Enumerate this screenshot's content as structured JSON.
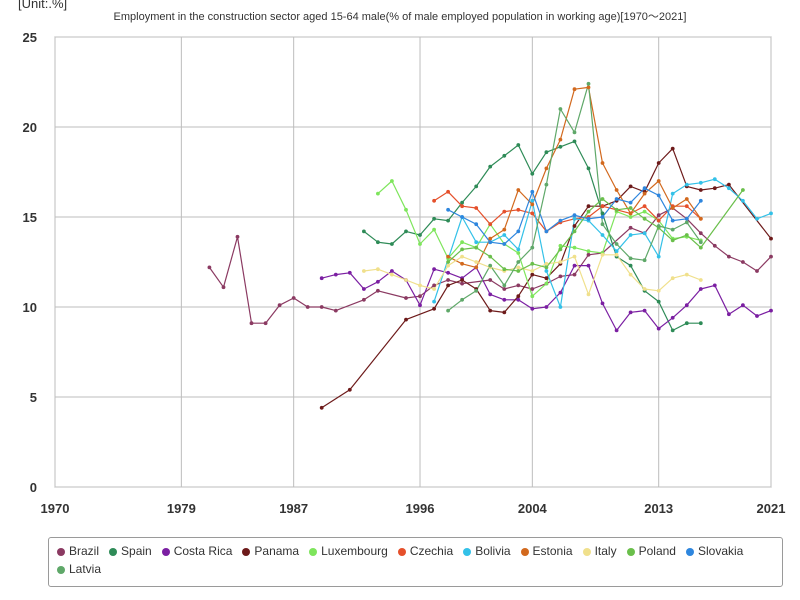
{
  "chart_data": {
    "type": "line",
    "unit_label": "[Unit:.%]",
    "title": "Employment in the construction sector aged 15-64 male(% of male employed population in working age)[1970〜2021]",
    "xlabel": "",
    "ylabel": "",
    "xlim": [
      1970,
      2021
    ],
    "ylim": [
      0,
      25
    ],
    "x_ticks": [
      "1970",
      "1979",
      "1987",
      "1996",
      "2004",
      "2013",
      "2021"
    ],
    "y_ticks": [
      "0",
      "5",
      "10",
      "15",
      "20",
      "25"
    ],
    "grid": true,
    "legend_position": "bottom",
    "series": [
      {
        "name": "Brazil",
        "color": "#8b3a62",
        "points": [
          [
            1981,
            12.2
          ],
          [
            1982,
            11.1
          ],
          [
            1983,
            13.9
          ],
          [
            1984,
            9.1
          ],
          [
            1985,
            9.1
          ],
          [
            1986,
            10.1
          ],
          [
            1987,
            10.5
          ],
          [
            1988,
            10.0
          ],
          [
            1989,
            10.0
          ],
          [
            1990,
            9.8
          ],
          [
            1992,
            10.4
          ],
          [
            1993,
            10.9
          ],
          [
            1995,
            10.5
          ],
          [
            1996,
            10.6
          ],
          [
            1997,
            11.2
          ],
          [
            1998,
            11.5
          ],
          [
            1999,
            11.3
          ],
          [
            2001,
            11.5
          ],
          [
            2002,
            11.0
          ],
          [
            2003,
            11.2
          ],
          [
            2004,
            11.0
          ],
          [
            2005,
            11.3
          ],
          [
            2006,
            11.7
          ],
          [
            2007,
            11.8
          ],
          [
            2008,
            12.9
          ],
          [
            2009,
            13.0
          ],
          [
            2011,
            14.4
          ],
          [
            2012,
            14.1
          ],
          [
            2013,
            15.1
          ],
          [
            2014,
            15.5
          ],
          [
            2015,
            14.9
          ],
          [
            2016,
            14.1
          ],
          [
            2017,
            13.4
          ],
          [
            2018,
            12.8
          ],
          [
            2019,
            12.5
          ],
          [
            2020,
            12.0
          ],
          [
            2021,
            12.8
          ]
        ]
      },
      {
        "name": "Spain",
        "color": "#2e8b57",
        "points": [
          [
            1992,
            14.2
          ],
          [
            1993,
            13.6
          ],
          [
            1994,
            13.5
          ],
          [
            1995,
            14.2
          ],
          [
            1996,
            14.0
          ],
          [
            1997,
            14.9
          ],
          [
            1998,
            14.8
          ],
          [
            1999,
            15.8
          ],
          [
            2000,
            16.7
          ],
          [
            2001,
            17.8
          ],
          [
            2002,
            18.4
          ],
          [
            2003,
            19.0
          ],
          [
            2004,
            17.4
          ],
          [
            2005,
            18.6
          ],
          [
            2006,
            18.9
          ],
          [
            2007,
            19.2
          ],
          [
            2008,
            17.7
          ],
          [
            2009,
            15.2
          ],
          [
            2010,
            12.8
          ],
          [
            2011,
            12.3
          ],
          [
            2012,
            10.9
          ],
          [
            2013,
            10.3
          ],
          [
            2014,
            8.7
          ],
          [
            2015,
            9.1
          ],
          [
            2016,
            9.1
          ]
        ]
      },
      {
        "name": "Costa Rica",
        "color": "#7b1fa2",
        "points": [
          [
            1989,
            11.6
          ],
          [
            1990,
            11.8
          ],
          [
            1991,
            11.9
          ],
          [
            1992,
            11.0
          ],
          [
            1993,
            11.4
          ],
          [
            1994,
            12.0
          ],
          [
            1995,
            11.5
          ],
          [
            1996,
            10.1
          ],
          [
            1997,
            12.1
          ],
          [
            1998,
            11.9
          ],
          [
            1999,
            11.6
          ],
          [
            2000,
            12.2
          ],
          [
            2001,
            10.7
          ],
          [
            2002,
            10.4
          ],
          [
            2003,
            10.4
          ],
          [
            2004,
            9.9
          ],
          [
            2005,
            10.0
          ],
          [
            2006,
            10.8
          ],
          [
            2007,
            12.3
          ],
          [
            2008,
            12.3
          ],
          [
            2009,
            10.2
          ],
          [
            2010,
            8.7
          ],
          [
            2011,
            9.7
          ],
          [
            2012,
            9.8
          ],
          [
            2013,
            8.8
          ],
          [
            2014,
            9.4
          ],
          [
            2015,
            10.1
          ],
          [
            2016,
            11.0
          ],
          [
            2017,
            11.2
          ],
          [
            2018,
            9.6
          ],
          [
            2019,
            10.1
          ],
          [
            2020,
            9.5
          ],
          [
            2021,
            9.8
          ]
        ]
      },
      {
        "name": "Panama",
        "color": "#6d1a1a",
        "points": [
          [
            1989,
            4.4
          ],
          [
            1991,
            5.4
          ],
          [
            1995,
            9.3
          ],
          [
            1997,
            9.9
          ],
          [
            1998,
            11.2
          ],
          [
            1999,
            11.5
          ],
          [
            2000,
            11.0
          ],
          [
            2001,
            9.8
          ],
          [
            2002,
            9.7
          ],
          [
            2003,
            10.6
          ],
          [
            2004,
            11.8
          ],
          [
            2005,
            11.6
          ],
          [
            2006,
            12.4
          ],
          [
            2007,
            14.5
          ],
          [
            2008,
            15.6
          ],
          [
            2009,
            15.6
          ],
          [
            2010,
            15.9
          ],
          [
            2011,
            16.7
          ],
          [
            2012,
            16.4
          ],
          [
            2013,
            18.0
          ],
          [
            2014,
            18.8
          ],
          [
            2015,
            16.7
          ],
          [
            2016,
            16.5
          ],
          [
            2017,
            16.6
          ],
          [
            2018,
            16.8
          ],
          [
            2021,
            13.8
          ]
        ]
      },
      {
        "name": "Luxembourg",
        "color": "#7ee55c",
        "points": [
          [
            1993,
            16.3
          ],
          [
            1994,
            17.0
          ],
          [
            1995,
            15.4
          ],
          [
            1996,
            13.5
          ],
          [
            1997,
            14.3
          ],
          [
            1998,
            12.7
          ],
          [
            1999,
            13.6
          ],
          [
            2000,
            13.3
          ],
          [
            2001,
            14.6
          ],
          [
            2002,
            13.5
          ],
          [
            2003,
            13.0
          ],
          [
            2004,
            10.6
          ],
          [
            2005,
            11.3
          ],
          [
            2006,
            13.4
          ],
          [
            2007,
            13.3
          ],
          [
            2008,
            13.1
          ],
          [
            2009,
            13.0
          ],
          [
            2010,
            15.3
          ],
          [
            2011,
            15.0
          ],
          [
            2012,
            15.3
          ],
          [
            2013,
            14.8
          ],
          [
            2014,
            13.8
          ],
          [
            2015,
            13.9
          ],
          [
            2016,
            13.7
          ]
        ]
      },
      {
        "name": "Czechia",
        "color": "#e5502b",
        "points": [
          [
            1997,
            15.9
          ],
          [
            1998,
            16.4
          ],
          [
            1999,
            15.6
          ],
          [
            2000,
            15.5
          ],
          [
            2001,
            14.6
          ],
          [
            2002,
            15.3
          ],
          [
            2003,
            15.4
          ],
          [
            2004,
            15.2
          ],
          [
            2005,
            14.2
          ],
          [
            2006,
            14.7
          ],
          [
            2007,
            14.9
          ],
          [
            2008,
            15.0
          ],
          [
            2009,
            15.6
          ],
          [
            2010,
            15.4
          ],
          [
            2011,
            15.2
          ],
          [
            2012,
            15.6
          ],
          [
            2013,
            14.8
          ],
          [
            2014,
            15.6
          ],
          [
            2015,
            15.6
          ],
          [
            2016,
            14.9
          ]
        ]
      },
      {
        "name": "Bolivia",
        "color": "#33c1e8",
        "points": [
          [
            1997,
            10.3
          ],
          [
            1999,
            15.0
          ],
          [
            2000,
            13.6
          ],
          [
            2001,
            13.6
          ],
          [
            2002,
            14.0
          ],
          [
            2003,
            13.2
          ],
          [
            2004,
            15.9
          ],
          [
            2005,
            12.0
          ],
          [
            2006,
            10.0
          ],
          [
            2007,
            14.9
          ],
          [
            2008,
            14.8
          ],
          [
            2009,
            14.0
          ],
          [
            2010,
            13.1
          ],
          [
            2011,
            14.0
          ],
          [
            2012,
            14.1
          ],
          [
            2013,
            12.8
          ],
          [
            2014,
            16.3
          ],
          [
            2015,
            16.8
          ],
          [
            2016,
            16.9
          ],
          [
            2017,
            17.1
          ],
          [
            2018,
            16.6
          ],
          [
            2019,
            15.9
          ],
          [
            2020,
            14.9
          ],
          [
            2021,
            15.2
          ]
        ]
      },
      {
        "name": "Estonia",
        "color": "#d2691e",
        "points": [
          [
            1998,
            12.8
          ],
          [
            1999,
            12.4
          ],
          [
            2000,
            12.2
          ],
          [
            2001,
            13.8
          ],
          [
            2002,
            14.3
          ],
          [
            2003,
            16.5
          ],
          [
            2004,
            15.7
          ],
          [
            2005,
            17.7
          ],
          [
            2006,
            19.3
          ],
          [
            2007,
            22.1
          ],
          [
            2008,
            22.2
          ],
          [
            2009,
            18.0
          ],
          [
            2010,
            16.5
          ],
          [
            2011,
            15.2
          ],
          [
            2012,
            16.3
          ],
          [
            2013,
            17.0
          ],
          [
            2014,
            15.5
          ],
          [
            2015,
            16.0
          ],
          [
            2016,
            14.9
          ]
        ]
      },
      {
        "name": "Italy",
        "color": "#f0e08c",
        "points": [
          [
            1992,
            12.0
          ],
          [
            1993,
            12.1
          ],
          [
            1994,
            11.8
          ],
          [
            1995,
            11.5
          ],
          [
            1996,
            11.2
          ],
          [
            1997,
            11.0
          ],
          [
            1998,
            12.3
          ],
          [
            1999,
            12.8
          ],
          [
            2000,
            12.5
          ],
          [
            2001,
            12.2
          ],
          [
            2002,
            12.0
          ],
          [
            2003,
            12.2
          ],
          [
            2004,
            12.0
          ],
          [
            2005,
            12.4
          ],
          [
            2006,
            12.5
          ],
          [
            2007,
            12.8
          ],
          [
            2008,
            10.7
          ],
          [
            2009,
            12.9
          ],
          [
            2010,
            12.9
          ],
          [
            2011,
            11.8
          ],
          [
            2012,
            11.0
          ],
          [
            2013,
            10.9
          ],
          [
            2014,
            11.6
          ],
          [
            2015,
            11.8
          ],
          [
            2016,
            11.5
          ]
        ]
      },
      {
        "name": "Poland",
        "color": "#6abf4b",
        "points": [
          [
            1998,
            12.5
          ],
          [
            1999,
            13.2
          ],
          [
            2000,
            13.3
          ],
          [
            2001,
            12.8
          ],
          [
            2002,
            12.1
          ],
          [
            2003,
            12.0
          ],
          [
            2004,
            12.4
          ],
          [
            2005,
            12.2
          ],
          [
            2006,
            13.2
          ],
          [
            2007,
            14.2
          ],
          [
            2008,
            15.3
          ],
          [
            2009,
            16.0
          ],
          [
            2010,
            15.4
          ],
          [
            2011,
            15.5
          ],
          [
            2012,
            14.9
          ],
          [
            2013,
            14.4
          ],
          [
            2014,
            13.7
          ],
          [
            2015,
            14.0
          ],
          [
            2016,
            13.3
          ],
          [
            2019,
            16.5
          ]
        ]
      },
      {
        "name": "Slovakia",
        "color": "#2e86de",
        "points": [
          [
            1998,
            15.4
          ],
          [
            1999,
            15.0
          ],
          [
            2000,
            14.6
          ],
          [
            2001,
            13.6
          ],
          [
            2002,
            13.5
          ],
          [
            2003,
            14.2
          ],
          [
            2004,
            16.4
          ],
          [
            2005,
            14.2
          ],
          [
            2006,
            14.8
          ],
          [
            2007,
            15.1
          ],
          [
            2008,
            14.9
          ],
          [
            2009,
            15.0
          ],
          [
            2010,
            16.0
          ],
          [
            2011,
            15.8
          ],
          [
            2012,
            16.6
          ],
          [
            2013,
            16.2
          ],
          [
            2014,
            14.8
          ],
          [
            2015,
            14.9
          ],
          [
            2016,
            15.9
          ]
        ]
      },
      {
        "name": "Latvia",
        "color": "#5fa869",
        "points": [
          [
            1998,
            9.8
          ],
          [
            1999,
            10.4
          ],
          [
            2000,
            10.9
          ],
          [
            2001,
            12.3
          ],
          [
            2002,
            11.2
          ],
          [
            2003,
            12.5
          ],
          [
            2004,
            13.3
          ],
          [
            2005,
            16.8
          ],
          [
            2006,
            21.0
          ],
          [
            2007,
            19.7
          ],
          [
            2008,
            22.4
          ],
          [
            2009,
            14.6
          ],
          [
            2010,
            13.5
          ],
          [
            2011,
            12.7
          ],
          [
            2012,
            12.6
          ],
          [
            2013,
            14.5
          ],
          [
            2014,
            14.3
          ],
          [
            2015,
            14.7
          ],
          [
            2016,
            13.6
          ]
        ]
      }
    ]
  }
}
